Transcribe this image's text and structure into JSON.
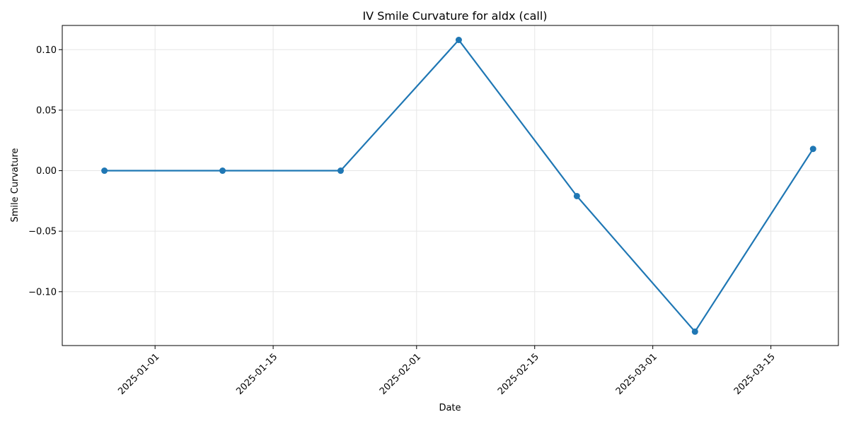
{
  "chart_data": {
    "type": "line",
    "title": "IV Smile Curvature for aldx (call)",
    "xlabel": "Date",
    "ylabel": "Smile Curvature",
    "x_tick_labels": [
      "2025-01-01",
      "2025-01-15",
      "2025-02-01",
      "2025-02-15",
      "2025-03-01",
      "2025-03-15"
    ],
    "y_tick_labels": [
      "0.10",
      "0.05",
      "0.00",
      "−0.05",
      "−0.10"
    ],
    "y_ticks": [
      0.1,
      0.05,
      0.0,
      -0.05,
      -0.1
    ],
    "xlim": [
      "2024-12-21",
      "2025-03-23"
    ],
    "ylim": [
      -0.1445,
      0.12
    ],
    "grid": true,
    "series": [
      {
        "color": "#1f77b4",
        "x": [
          "2024-12-26",
          "2025-01-09",
          "2025-01-23",
          "2025-02-06",
          "2025-02-20",
          "2025-03-06",
          "2025-03-20"
        ],
        "y": [
          0.0,
          0.0,
          0.0,
          0.108,
          -0.021,
          -0.133,
          0.018
        ]
      }
    ]
  }
}
